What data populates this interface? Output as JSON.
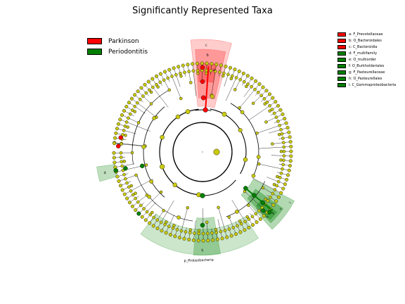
{
  "title": "Significantly Represented Taxa",
  "colors": {
    "node": "#c9c90e",
    "parkinson": "#ff0000",
    "periodontitis": "#008000",
    "edge": "#000000"
  },
  "legend": [
    {
      "label": "Parkinson",
      "color": "#ff0000"
    },
    {
      "label": "Periodontitis",
      "color": "#008000"
    }
  ],
  "taxa_legend": [
    {
      "label": "a: F_Prevotellaceae",
      "color": "#ff0000"
    },
    {
      "label": "b: O_Bacteroidales",
      "color": "#ff0000"
    },
    {
      "label": "c: C_Bacteroidia",
      "color": "#ff0000"
    },
    {
      "label": "d: F_multifamily",
      "color": "#008000"
    },
    {
      "label": "e: O_multiorder",
      "color": "#008000"
    },
    {
      "label": "f: O_Burkholderiales",
      "color": "#008000"
    },
    {
      "label": "g: F_Pasteurellaceae",
      "color": "#008000"
    },
    {
      "label": "h: O_Pasteurellales",
      "color": "#008000"
    },
    {
      "label": "i: C_Gammaproteobacteria",
      "color": "#008000"
    }
  ],
  "clade_labels": {
    "c": "c",
    "b": "b",
    "a": "a",
    "d": "d",
    "e": "e",
    "f": "f",
    "g": "g",
    "h": "h",
    "i": "i",
    "proteobacteria": "p_Proteobacteria"
  }
}
